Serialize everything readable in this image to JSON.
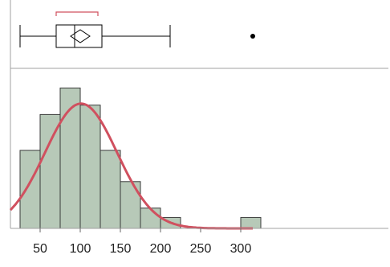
{
  "chart_data": {
    "type": "histogram",
    "title": "",
    "xlabel": "",
    "ylabel": "",
    "xlim": [
      13,
      484
    ],
    "xticks": [
      {
        "value": 50,
        "label": "50"
      },
      {
        "value": 100,
        "label": "100"
      },
      {
        "value": 150,
        "label": "150"
      },
      {
        "value": 200,
        "label": "200"
      },
      {
        "value": 250,
        "label": "250"
      },
      {
        "value": 300,
        "label": "300"
      }
    ],
    "bin_width": 25,
    "bins": [
      {
        "start": 25,
        "end": 50,
        "relative_height": 0.5
      },
      {
        "start": 50,
        "end": 75,
        "relative_height": 0.73
      },
      {
        "start": 75,
        "end": 100,
        "relative_height": 0.9
      },
      {
        "start": 100,
        "end": 125,
        "relative_height": 0.79
      },
      {
        "start": 125,
        "end": 150,
        "relative_height": 0.5
      },
      {
        "start": 150,
        "end": 175,
        "relative_height": 0.3
      },
      {
        "start": 175,
        "end": 200,
        "relative_height": 0.13
      },
      {
        "start": 200,
        "end": 225,
        "relative_height": 0.07
      },
      {
        "start": 225,
        "end": 250,
        "relative_height": 0.0
      },
      {
        "start": 250,
        "end": 275,
        "relative_height": 0.0
      },
      {
        "start": 275,
        "end": 300,
        "relative_height": 0.0
      },
      {
        "start": 300,
        "end": 325,
        "relative_height": 0.07
      }
    ],
    "normal_curve": {
      "mean": 101,
      "sd": 45,
      "peak_relative_height": 0.8
    },
    "boxplot": {
      "whisker_low": 25,
      "q1": 70,
      "median": 93,
      "q3": 127,
      "whisker_high": 212,
      "mean": 100,
      "mean_diamond_halfwidth": 12,
      "shortest_half": [
        70,
        122
      ],
      "outliers": [
        315
      ]
    },
    "colors": {
      "bar_fill": "#b7c9b8",
      "bar_stroke": "#3a3a3a",
      "curve": "#d0505f",
      "bracket": "#d0505f",
      "box": "#000000",
      "separator": "#a0a0a0"
    },
    "grid": false,
    "legend": "none"
  }
}
